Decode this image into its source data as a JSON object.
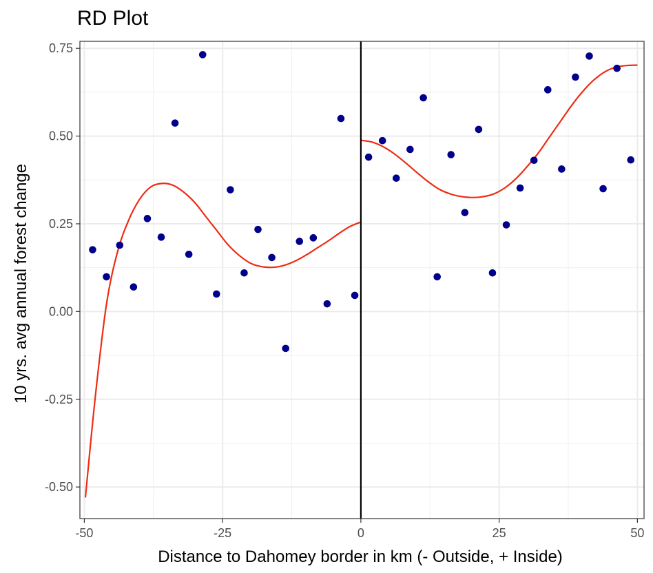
{
  "chart_data": {
    "type": "scatter",
    "title": "RD Plot",
    "xlabel": "Distance to Dahomey border in km (- Outside, + Inside)",
    "ylabel": "10 yrs. avg annual forest change",
    "xlim": [
      -50.8,
      51.2
    ],
    "ylim": [
      -0.59,
      0.77
    ],
    "x_ticks": [
      -50,
      -25,
      0,
      25,
      50
    ],
    "x_tick_labels": [
      "-50",
      "-25",
      "0",
      "25",
      "50"
    ],
    "y_ticks": [
      -0.5,
      -0.25,
      0.0,
      0.25,
      0.5,
      0.75
    ],
    "y_tick_labels": [
      "-0.50",
      "-0.25",
      "0.00",
      "0.25",
      "0.50",
      "0.75"
    ],
    "grid": true,
    "cutoff": 0,
    "colors": {
      "points": "#00008b",
      "fit": "#ee2c12",
      "cutoff": "#000000"
    },
    "points": {
      "x": [
        -48.5,
        -46.0,
        -43.6,
        -41.1,
        -38.6,
        -36.1,
        -33.6,
        -31.1,
        -28.6,
        -26.1,
        -23.6,
        -21.1,
        -18.6,
        -16.1,
        -13.6,
        -11.1,
        -8.6,
        -6.1,
        -3.6,
        -1.1,
        1.4,
        3.9,
        6.4,
        8.9,
        11.3,
        13.8,
        16.3,
        18.8,
        21.3,
        23.8,
        26.3,
        28.8,
        31.3,
        33.8,
        36.3,
        38.8,
        41.3,
        43.8,
        46.3,
        48.8
      ],
      "y": [
        0.176,
        0.099,
        0.189,
        0.07,
        0.265,
        0.212,
        0.537,
        0.163,
        0.732,
        0.05,
        0.347,
        0.11,
        0.234,
        0.154,
        -0.105,
        0.2,
        0.21,
        0.022,
        0.55,
        0.046,
        0.44,
        0.487,
        0.38,
        0.462,
        0.609,
        0.099,
        0.447,
        0.282,
        0.519,
        0.11,
        0.247,
        0.352,
        0.431,
        0.632,
        0.406,
        0.668,
        0.728,
        0.35,
        0.693,
        0.432
      ]
    },
    "fit_left": {
      "x": [
        -49.8,
        -48,
        -46,
        -44,
        -42,
        -40,
        -38,
        -36,
        -34,
        -32,
        -30,
        -28,
        -26,
        -24,
        -22,
        -20,
        -18,
        -16,
        -14,
        -12,
        -10,
        -8,
        -6,
        -4,
        -2,
        0
      ],
      "y": [
        -0.53,
        -0.24,
        0.02,
        0.17,
        0.26,
        0.32,
        0.355,
        0.365,
        0.36,
        0.34,
        0.31,
        0.27,
        0.23,
        0.19,
        0.16,
        0.138,
        0.128,
        0.126,
        0.131,
        0.143,
        0.16,
        0.18,
        0.2,
        0.222,
        0.242,
        0.255
      ]
    },
    "fit_right": {
      "x": [
        0,
        2,
        4,
        6,
        8,
        10,
        12,
        14,
        16,
        18,
        20,
        22,
        24,
        26,
        28,
        30,
        32,
        34,
        36,
        38,
        40,
        42,
        44,
        46,
        48,
        50
      ],
      "y": [
        0.488,
        0.483,
        0.47,
        0.45,
        0.425,
        0.398,
        0.372,
        0.35,
        0.336,
        0.328,
        0.325,
        0.327,
        0.335,
        0.352,
        0.378,
        0.412,
        0.45,
        0.495,
        0.54,
        0.585,
        0.625,
        0.658,
        0.682,
        0.696,
        0.701,
        0.702
      ]
    }
  }
}
